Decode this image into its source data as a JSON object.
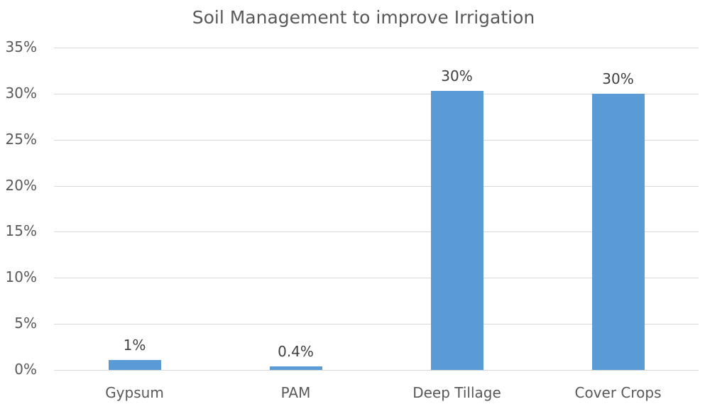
{
  "chart_data": {
    "type": "bar",
    "title": "Soil Management to improve Irrigation",
    "xlabel": "",
    "ylabel": "",
    "categories": [
      "Gypsum",
      "PAM",
      "Deep Tillage",
      "Cover Crops"
    ],
    "values": [
      0.011,
      0.004,
      0.303,
      0.3
    ],
    "data_labels": [
      "1%",
      "0.4%",
      "30%",
      "30%"
    ],
    "ylim": [
      0,
      0.35
    ],
    "yticks": [
      "0%",
      "5%",
      "10%",
      "15%",
      "20%",
      "25%",
      "30%",
      "35%"
    ],
    "grid": true,
    "legend": null,
    "bar_color": "#5b9bd5"
  }
}
